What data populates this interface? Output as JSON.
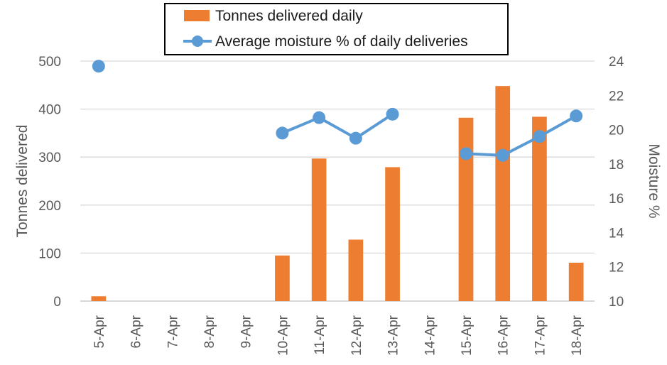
{
  "chart_data": {
    "type": "bar",
    "categories": [
      "5-Apr",
      "6-Apr",
      "7-Apr",
      "8-Apr",
      "9-Apr",
      "10-Apr",
      "11-Apr",
      "12-Apr",
      "13-Apr",
      "14-Apr",
      "15-Apr",
      "16-Apr",
      "17-Apr",
      "18-Apr"
    ],
    "series": [
      {
        "name": "Tonnes delivered daily",
        "type": "bar",
        "axis": "left",
        "color": "#ED7D31",
        "values": [
          10,
          0,
          0,
          0,
          0,
          95,
          297,
          128,
          279,
          0,
          382,
          448,
          384,
          80
        ]
      },
      {
        "name": "Average moisture % of daily deliveries",
        "type": "line",
        "axis": "right",
        "color": "#5B9BD5",
        "values": [
          23.7,
          null,
          null,
          null,
          null,
          19.8,
          20.7,
          19.5,
          20.9,
          null,
          18.6,
          18.5,
          19.6,
          20.8
        ]
      }
    ],
    "ylabel": "Tonnes delivered",
    "y2label": "Moisture %",
    "ylim": [
      0,
      500
    ],
    "y2lim": [
      10,
      24
    ],
    "yticks": [
      "0",
      "100",
      "200",
      "300",
      "400",
      "500"
    ],
    "y2ticks": [
      "10",
      "12",
      "14",
      "16",
      "18",
      "20",
      "22",
      "24"
    ],
    "grid": true,
    "legend": "top-center"
  }
}
